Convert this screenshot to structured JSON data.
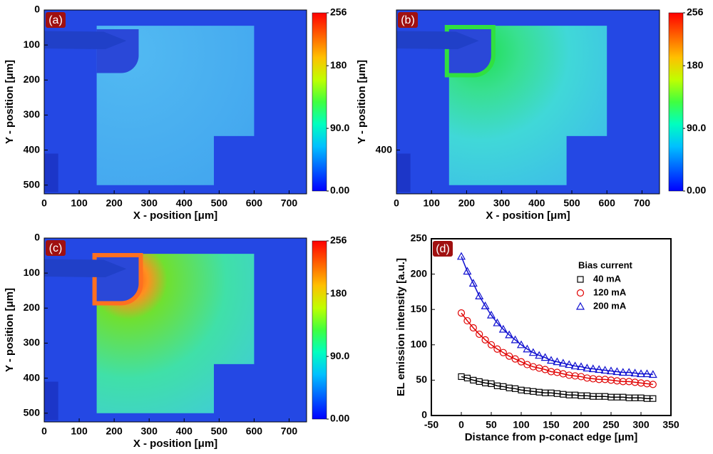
{
  "chart_data": [
    {
      "type": "heatmap",
      "panel_label": "(a)",
      "xlabel": "X - position [μm]",
      "ylabel": "Y - position [μm]",
      "xlim": [
        0,
        750
      ],
      "xticks": [
        0,
        100,
        200,
        300,
        400,
        500,
        600,
        700
      ],
      "ylim": [
        0,
        525
      ],
      "y_reversed": true,
      "yticks": [
        0,
        100,
        200,
        300,
        400,
        500
      ],
      "colorbar": {
        "lim": [
          0,
          256
        ],
        "ticks": [
          256,
          180,
          {
            "value": 90,
            "label": "90.0"
          },
          {
            "value": 0,
            "label": "0.00"
          }
        ]
      }
    },
    {
      "type": "heatmap",
      "panel_label": "(b)",
      "xlabel": "X - position [μm]",
      "ylabel": "Y - position [μm]",
      "xlim": [
        0,
        750
      ],
      "xticks": [
        0,
        100,
        200,
        300,
        400,
        500,
        600,
        700
      ],
      "ylim": [
        0,
        525
      ],
      "y_reversed": true,
      "yticks": [
        400
      ],
      "colorbar": {
        "lim": [
          0,
          256
        ],
        "ticks": [
          256,
          180,
          {
            "value": 90,
            "label": "90.0"
          },
          {
            "value": 0,
            "label": "0.00"
          }
        ]
      }
    },
    {
      "type": "heatmap",
      "panel_label": "(c)",
      "xlabel": "X - position [μm]",
      "ylabel": "Y - position [μm]",
      "xlim": [
        0,
        750
      ],
      "xticks": [
        0,
        100,
        200,
        300,
        400,
        500,
        600,
        700
      ],
      "ylim": [
        0,
        525
      ],
      "y_reversed": true,
      "yticks": [
        0,
        100,
        200,
        300,
        400,
        500
      ],
      "colorbar": {
        "lim": [
          0,
          256
        ],
        "ticks": [
          256,
          180,
          {
            "value": 90,
            "label": "90.0"
          },
          {
            "value": 0,
            "label": "0.00"
          }
        ]
      }
    },
    {
      "type": "scatter",
      "panel_label": "(d)",
      "xlabel": "Distance from p-conact edge [μm]",
      "ylabel": "EL emission intensity [a.u.]",
      "legend_title": "Bias current",
      "legend": "upper right",
      "xlim": [
        -50,
        350
      ],
      "xticks": [
        -50,
        0,
        50,
        100,
        150,
        200,
        250,
        300,
        350
      ],
      "ylim": [
        0,
        250
      ],
      "yticks": [
        0,
        50,
        100,
        150,
        200,
        250
      ],
      "x": [
        0,
        10,
        20,
        30,
        40,
        50,
        60,
        70,
        80,
        90,
        100,
        110,
        120,
        130,
        140,
        150,
        160,
        170,
        180,
        190,
        200,
        210,
        220,
        230,
        240,
        250,
        260,
        270,
        280,
        290,
        300,
        310,
        320
      ],
      "series": [
        {
          "name": "40 mA",
          "color": "#000000",
          "marker": "square",
          "values": [
            55,
            53,
            50,
            48,
            46,
            45,
            42,
            41,
            39,
            38,
            36,
            35,
            34,
            33,
            32,
            32,
            31,
            30,
            29,
            29,
            28,
            28,
            27,
            27,
            27,
            26,
            26,
            26,
            25,
            25,
            25,
            24,
            24
          ]
        },
        {
          "name": "120 mA",
          "color": "#e00000",
          "marker": "circle",
          "values": [
            145,
            134,
            124,
            115,
            107,
            100,
            94,
            89,
            84,
            80,
            76,
            72,
            69,
            67,
            65,
            62,
            61,
            59,
            57,
            56,
            55,
            53,
            52,
            51,
            51,
            50,
            49,
            48,
            48,
            47,
            46,
            45,
            44
          ]
        },
        {
          "name": "200 mA",
          "color": "#1010d0",
          "marker": "triangle",
          "values": [
            225,
            204,
            187,
            169,
            155,
            142,
            131,
            122,
            114,
            107,
            100,
            94,
            89,
            85,
            82,
            78,
            76,
            74,
            72,
            70,
            69,
            67,
            66,
            65,
            64,
            63,
            62,
            61,
            61,
            60,
            59,
            59,
            58
          ]
        }
      ]
    }
  ]
}
